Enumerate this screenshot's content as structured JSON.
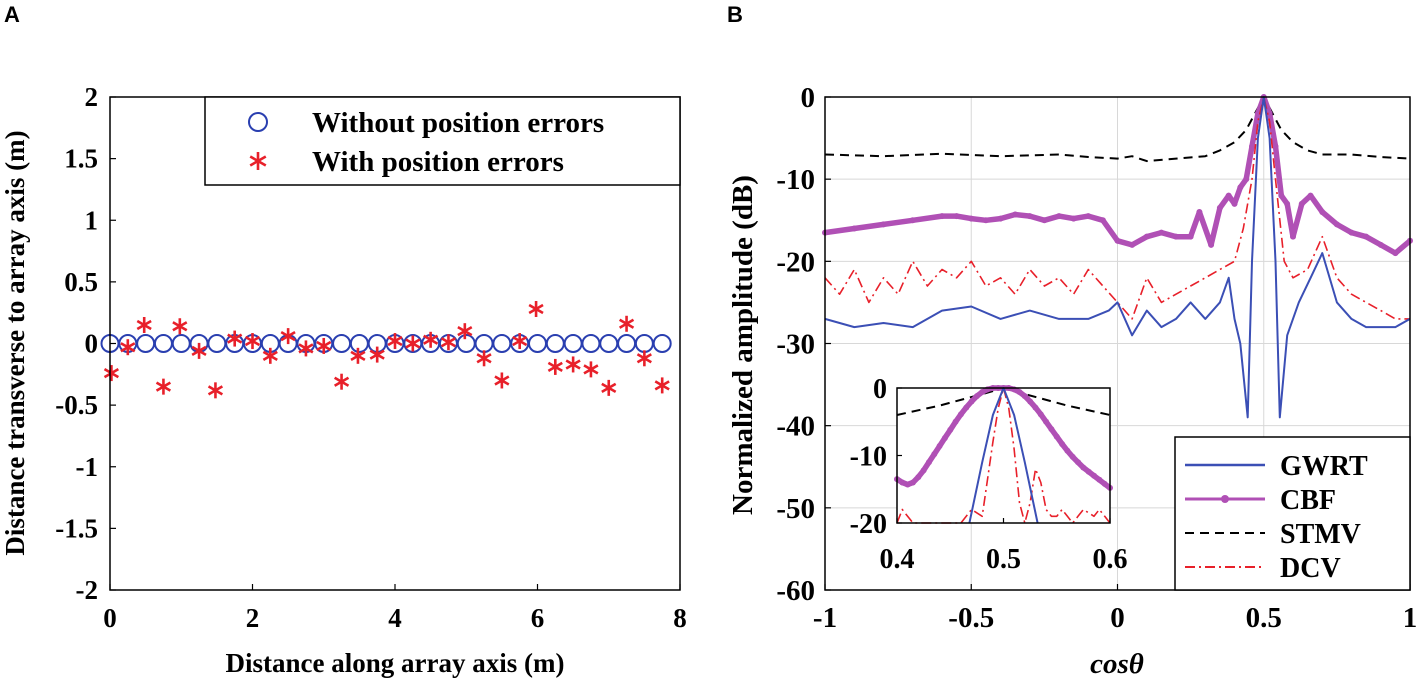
{
  "colors": {
    "gwrt": "#3b4fb5",
    "cbf": "#b050b5",
    "stmv": "#000000",
    "dcv": "#e8202a",
    "circle": "#2a3fb0",
    "star": "#e8202a",
    "grid": "#d8d8d8"
  },
  "chart_data": [
    {
      "panel_label": "A",
      "type": "scatter",
      "xlabel": "Distance along array axis (m)",
      "ylabel": "Distance transverse to array axis (m)",
      "xlim": [
        0,
        8
      ],
      "ylim": [
        -2,
        2
      ],
      "xticks": [
        "0",
        "2",
        "4",
        "6",
        "8"
      ],
      "yticks": [
        "2",
        "1.5",
        "1",
        "0.5",
        "0",
        "-0.5",
        "-1",
        "-1.5",
        "-2"
      ],
      "grid": false,
      "legend_position": "top-right",
      "series": [
        {
          "name": "Without position errors",
          "marker": "circle",
          "x": [
            0,
            0.25,
            0.5,
            0.75,
            1,
            1.25,
            1.5,
            1.75,
            2,
            2.25,
            2.5,
            2.75,
            3,
            3.25,
            3.5,
            3.75,
            4,
            4.25,
            4.5,
            4.75,
            5,
            5.25,
            5.5,
            5.75,
            6,
            6.25,
            6.5,
            6.75,
            7,
            7.25,
            7.5,
            7.75
          ],
          "y": [
            0,
            0,
            0,
            0,
            0,
            0,
            0,
            0,
            0,
            0,
            0,
            0,
            0,
            0,
            0,
            0,
            0,
            0,
            0,
            0,
            0,
            0,
            0,
            0,
            0,
            0,
            0,
            0,
            0,
            0,
            0,
            0
          ]
        },
        {
          "name": "With position errors",
          "marker": "star",
          "x": [
            0.02,
            0.25,
            0.48,
            0.75,
            0.98,
            1.25,
            1.48,
            1.75,
            2.0,
            2.25,
            2.5,
            2.75,
            3.0,
            3.25,
            3.48,
            3.75,
            4.0,
            4.25,
            4.5,
            4.75,
            4.98,
            5.25,
            5.5,
            5.75,
            5.98,
            6.25,
            6.5,
            6.75,
            7.0,
            7.25,
            7.5,
            7.75
          ],
          "y": [
            -0.24,
            -0.03,
            0.15,
            -0.35,
            0.14,
            -0.06,
            -0.38,
            0.04,
            0.02,
            -0.1,
            0.06,
            -0.04,
            -0.02,
            -0.31,
            -0.1,
            -0.09,
            0.02,
            0.0,
            0.03,
            0.01,
            0.1,
            -0.12,
            -0.3,
            0.02,
            0.28,
            -0.19,
            -0.17,
            -0.21,
            -0.36,
            0.16,
            -0.12,
            -0.34
          ]
        }
      ]
    },
    {
      "panel_label": "B",
      "type": "line",
      "xlabel": "cosθ",
      "ylabel": "Normalized amplitude (dB)",
      "xlim": [
        -1,
        1
      ],
      "ylim": [
        -60,
        0
      ],
      "xticks": [
        "-1",
        "-0.5",
        "0",
        "0.5",
        "1"
      ],
      "yticks": [
        "0",
        "-10",
        "-20",
        "-30",
        "-40",
        "-50",
        "-60"
      ],
      "grid": true,
      "legend_position": "bottom-right",
      "series": [
        {
          "name": "GWRT",
          "style": "solid",
          "x": [
            -1,
            -0.9,
            -0.8,
            -0.7,
            -0.6,
            -0.5,
            -0.4,
            -0.3,
            -0.2,
            -0.1,
            -0.03,
            0.0,
            0.05,
            0.1,
            0.15,
            0.2,
            0.25,
            0.3,
            0.35,
            0.38,
            0.4,
            0.42,
            0.445,
            0.46,
            0.48,
            0.5,
            0.52,
            0.54,
            0.555,
            0.58,
            0.62,
            0.66,
            0.7,
            0.75,
            0.8,
            0.85,
            0.9,
            0.95,
            1
          ],
          "y": [
            -27,
            -28,
            -27.5,
            -28,
            -26,
            -25.5,
            -27,
            -26,
            -27,
            -27,
            -26,
            -25,
            -29,
            -26,
            -28,
            -27,
            -25,
            -27,
            -25,
            -22,
            -27,
            -30,
            -39,
            -20,
            -5,
            0,
            -5,
            -20,
            -39,
            -29,
            -25,
            -22,
            -19,
            -25,
            -27,
            -28,
            -28,
            -28,
            -27
          ]
        },
        {
          "name": "CBF",
          "style": "solid-dots",
          "x": [
            -1,
            -0.9,
            -0.8,
            -0.7,
            -0.6,
            -0.55,
            -0.5,
            -0.45,
            -0.4,
            -0.35,
            -0.3,
            -0.25,
            -0.2,
            -0.15,
            -0.1,
            -0.05,
            0.0,
            0.05,
            0.1,
            0.15,
            0.2,
            0.25,
            0.28,
            0.32,
            0.35,
            0.38,
            0.4,
            0.42,
            0.44,
            0.46,
            0.48,
            0.5,
            0.52,
            0.54,
            0.56,
            0.58,
            0.6,
            0.63,
            0.66,
            0.7,
            0.75,
            0.8,
            0.85,
            0.9,
            0.95,
            1
          ],
          "y": [
            -16.5,
            -16,
            -15.5,
            -15,
            -14.5,
            -14.5,
            -14.8,
            -15,
            -14.8,
            -14.3,
            -14.5,
            -15,
            -14.5,
            -14.8,
            -14.5,
            -15,
            -17.5,
            -18,
            -17,
            -16.5,
            -17,
            -17,
            -14,
            -18,
            -13.5,
            -12,
            -13,
            -11,
            -10,
            -6,
            -2,
            0,
            -2,
            -6,
            -12,
            -13,
            -17,
            -13,
            -12,
            -14,
            -15.5,
            -16.5,
            -17,
            -18,
            -19,
            -17.5
          ]
        },
        {
          "name": "STMV",
          "style": "dashed",
          "x": [
            -1,
            -0.8,
            -0.6,
            -0.4,
            -0.2,
            -0.1,
            0.0,
            0.05,
            0.1,
            0.2,
            0.3,
            0.35,
            0.4,
            0.44,
            0.47,
            0.5,
            0.53,
            0.56,
            0.6,
            0.65,
            0.7,
            0.8,
            0.9,
            1
          ],
          "y": [
            -7,
            -7.2,
            -6.9,
            -7.2,
            -7,
            -7.3,
            -7.5,
            -7.2,
            -7.8,
            -7.5,
            -7.2,
            -6.5,
            -5.5,
            -4,
            -2,
            0,
            -2,
            -4,
            -5.5,
            -6.5,
            -7,
            -7,
            -7.3,
            -7.5
          ]
        },
        {
          "name": "DCV",
          "style": "dashdot",
          "x": [
            -1,
            -0.95,
            -0.9,
            -0.85,
            -0.8,
            -0.75,
            -0.7,
            -0.65,
            -0.6,
            -0.55,
            -0.5,
            -0.45,
            -0.4,
            -0.35,
            -0.3,
            -0.25,
            -0.2,
            -0.15,
            -0.1,
            -0.05,
            0.0,
            0.05,
            0.1,
            0.15,
            0.2,
            0.25,
            0.3,
            0.35,
            0.4,
            0.43,
            0.46,
            0.48,
            0.5,
            0.52,
            0.54,
            0.57,
            0.6,
            0.65,
            0.7,
            0.75,
            0.8,
            0.85,
            0.9,
            0.95,
            1
          ],
          "y": [
            -22,
            -24,
            -21,
            -25,
            -22,
            -24,
            -20,
            -23,
            -21,
            -22,
            -20,
            -23,
            -22,
            -24,
            -21,
            -23,
            -22,
            -24,
            -21,
            -23,
            -25,
            -27,
            -22,
            -25,
            -24,
            -23,
            -22,
            -21,
            -20,
            -16,
            -10,
            -3,
            0,
            -3,
            -10,
            -20,
            -22,
            -21,
            -17,
            -22,
            -24,
            -25,
            -26,
            -27,
            -27
          ]
        }
      ],
      "inset": {
        "xlim": [
          0.4,
          0.6
        ],
        "ylim": [
          -20,
          0
        ],
        "xticks": [
          "0.4",
          "0.5",
          "0.6"
        ],
        "yticks": [
          "0",
          "-10",
          "-20"
        ],
        "series": [
          {
            "name": "GWRT",
            "x": [
              0.468,
              0.48,
              0.49,
              0.5,
              0.51,
              0.52,
              0.532
            ],
            "y": [
              -20,
              -11,
              -4,
              0,
              -4,
              -11,
              -20
            ]
          },
          {
            "name": "CBF",
            "x": [
              0.4,
              0.405,
              0.41,
              0.415,
              0.42,
              0.425,
              0.43,
              0.435,
              0.44,
              0.445,
              0.45,
              0.455,
              0.46,
              0.465,
              0.47,
              0.475,
              0.48,
              0.485,
              0.49,
              0.495,
              0.5,
              0.505,
              0.51,
              0.515,
              0.52,
              0.525,
              0.53,
              0.535,
              0.54,
              0.545,
              0.55,
              0.555,
              0.56,
              0.565,
              0.57,
              0.575,
              0.58,
              0.585,
              0.59,
              0.595,
              0.6
            ],
            "y": [
              -13.5,
              -14,
              -14.3,
              -14,
              -13.2,
              -12.2,
              -11,
              -9.8,
              -8.6,
              -7.4,
              -6.2,
              -5,
              -3.9,
              -2.9,
              -2,
              -1.2,
              -0.6,
              -0.2,
              0,
              0,
              0,
              0,
              -0.2,
              -0.6,
              -1.2,
              -2,
              -2.9,
              -3.9,
              -5,
              -6.1,
              -7.2,
              -8.3,
              -9.3,
              -10.2,
              -11,
              -11.8,
              -12.4,
              -13,
              -13.6,
              -14.2,
              -14.8
            ]
          },
          {
            "name": "STMV",
            "x": [
              0.4,
              0.44,
              0.48,
              0.5,
              0.52,
              0.56,
              0.6
            ],
            "y": [
              -4,
              -2.6,
              -0.9,
              0,
              -0.9,
              -2.6,
              -4
            ]
          },
          {
            "name": "DCV",
            "x": [
              0.4,
              0.405,
              0.41,
              0.415,
              0.42,
              0.44,
              0.46,
              0.47,
              0.48,
              0.49,
              0.495,
              0.5,
              0.505,
              0.51,
              0.515,
              0.52,
              0.525,
              0.53,
              0.535,
              0.54,
              0.545,
              0.55,
              0.555,
              0.56,
              0.565,
              0.57,
              0.575,
              0.58,
              0.585,
              0.59,
              0.595,
              0.6
            ],
            "y": [
              -20,
              -18,
              -19,
              -20,
              -20,
              -20,
              -20,
              -18,
              -19,
              -8,
              -3,
              0,
              -3,
              -9,
              -17,
              -20,
              -17,
              -12,
              -14,
              -18,
              -19,
              -19,
              -18,
              -19,
              -20,
              -19,
              -18,
              -18.5,
              -19,
              -18,
              -19,
              -20
            ]
          }
        ]
      }
    }
  ]
}
